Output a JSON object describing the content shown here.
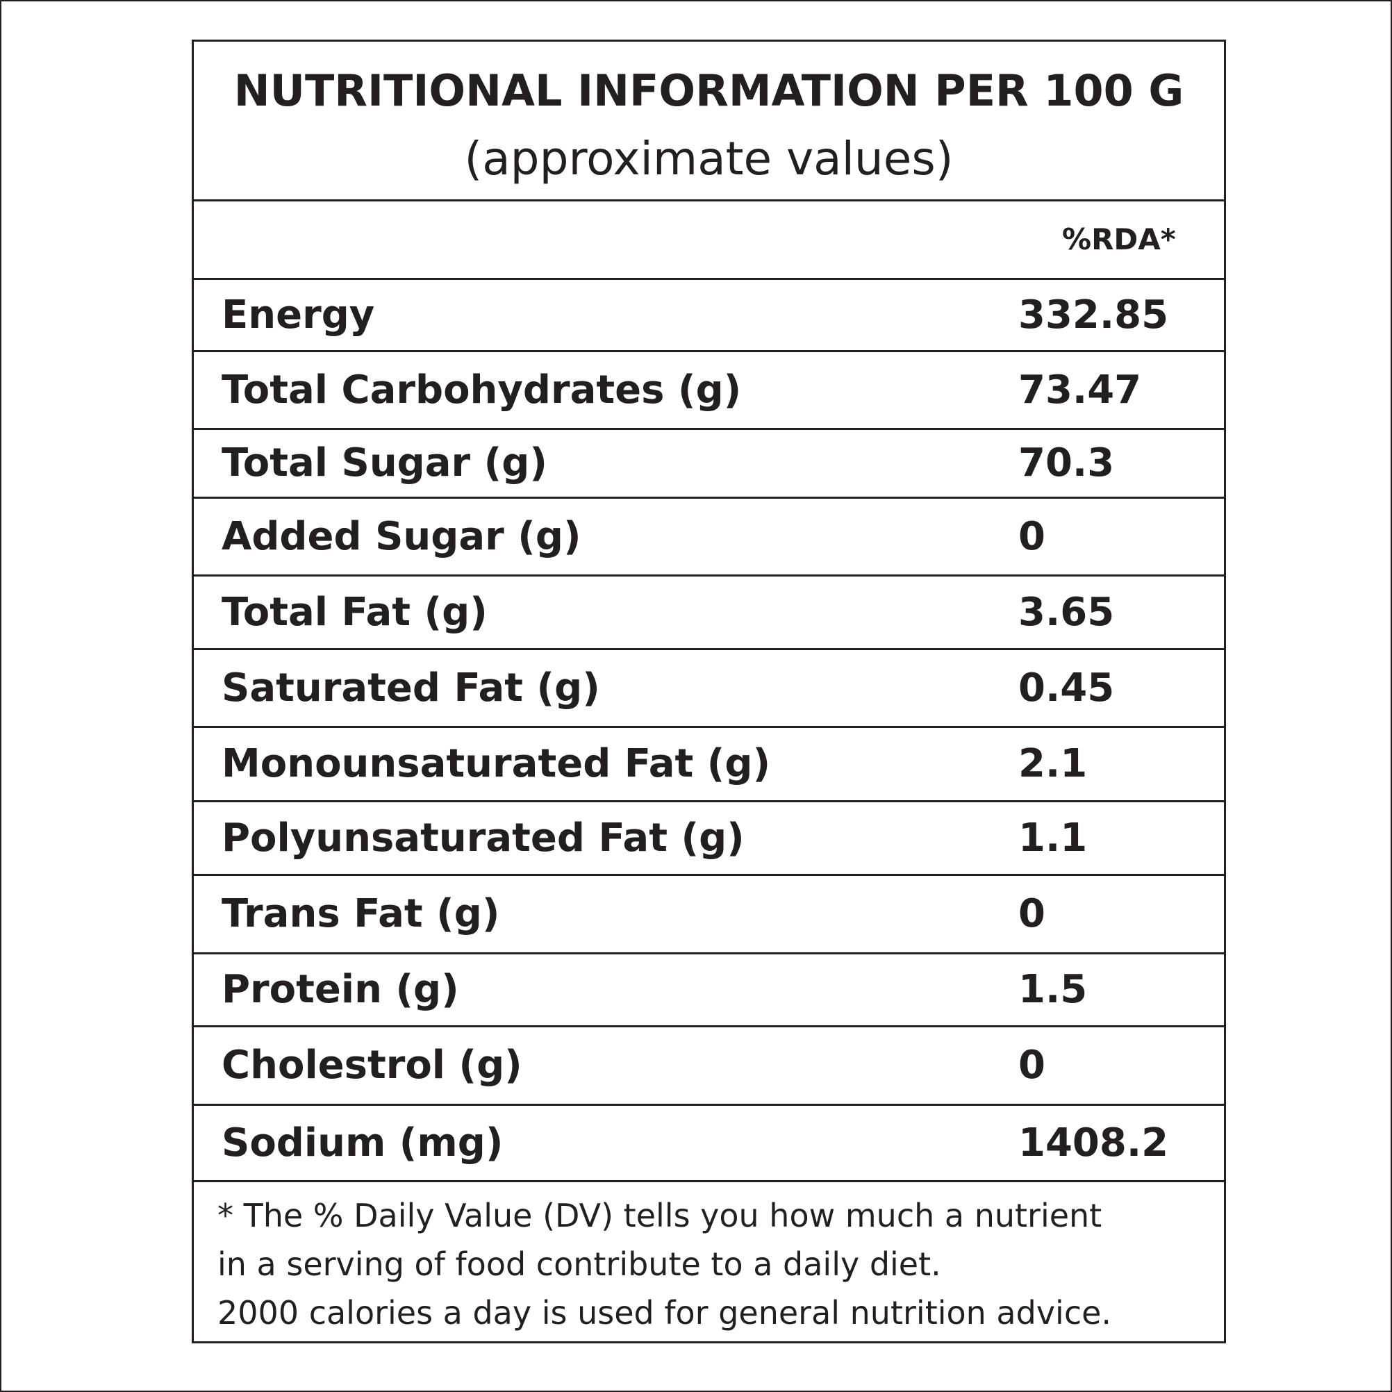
{
  "header": {
    "title": "NUTRITIONAL INFORMATION PER 100 G",
    "subtitle": "(approximate values)"
  },
  "rda_header": "%RDA*",
  "nutrients": [
    {
      "name": "Energy",
      "value": "332.85"
    },
    {
      "name": "Total Carbohydrates (g)",
      "value": "73.47"
    },
    {
      "name": "Total Sugar (g)",
      "value": "70.3"
    },
    {
      "name": "Added Sugar (g)",
      "value": "0"
    },
    {
      "name": "Total Fat (g)",
      "value": "3.65"
    },
    {
      "name": "Saturated Fat (g)",
      "value": "0.45"
    },
    {
      "name": "Monounsaturated Fat (g)",
      "value": "2.1"
    },
    {
      "name": "Polyunsaturated Fat (g)",
      "value": "1.1"
    },
    {
      "name": "Trans Fat (g)",
      "value": "0"
    },
    {
      "name": "Protein (g)",
      "value": "1.5"
    },
    {
      "name": "Cholestrol (g)",
      "value": "0"
    },
    {
      "name": "Sodium (mg)",
      "value": "1408.2"
    }
  ],
  "footnote": {
    "line1": "* The % Daily Value (DV) tells you how much a nutrient",
    "line2": "in a serving of food contribute to a daily diet.",
    "line3": "2000 calories a day is used for general nutrition advice."
  }
}
